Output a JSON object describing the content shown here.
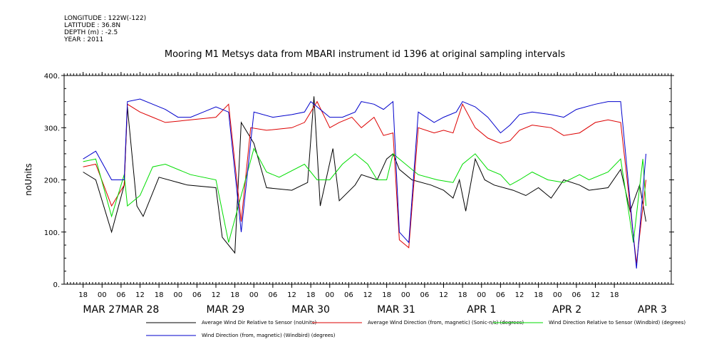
{
  "header": {
    "longitude": "LONGITUDE : 122W(-122)",
    "latitude": "LATITUDE : 36.8N",
    "depth": "DEPTH (m) : -2.5",
    "year": "YEAR : 2011"
  },
  "chart_data": {
    "type": "line",
    "title": "Mooring M1 Metsys data from MBARI instrument id 1396 at original sampling intervals",
    "ylabel": "noUnits",
    "ylim": [
      0,
      400
    ],
    "yticks": [
      0,
      100,
      200,
      300,
      400
    ],
    "ytick_labels": [
      "0.",
      "100.",
      "200.",
      "300.",
      "400."
    ],
    "xlim_hours": [
      -6,
      186
    ],
    "x_hour_ticks": [
      {
        "h": 0,
        "label": "18"
      },
      {
        "h": 6,
        "label": "00"
      },
      {
        "h": 12,
        "label": "06"
      },
      {
        "h": 18,
        "label": "12"
      },
      {
        "h": 24,
        "label": "18"
      },
      {
        "h": 30,
        "label": "00"
      },
      {
        "h": 36,
        "label": "06"
      },
      {
        "h": 42,
        "label": "12"
      },
      {
        "h": 48,
        "label": "18"
      },
      {
        "h": 54,
        "label": "00"
      },
      {
        "h": 60,
        "label": "06"
      },
      {
        "h": 66,
        "label": "12"
      },
      {
        "h": 72,
        "label": "18"
      },
      {
        "h": 78,
        "label": "00"
      },
      {
        "h": 84,
        "label": "06"
      },
      {
        "h": 90,
        "label": "12"
      },
      {
        "h": 96,
        "label": "18"
      },
      {
        "h": 102,
        "label": "00"
      },
      {
        "h": 108,
        "label": "06"
      },
      {
        "h": 114,
        "label": "12"
      },
      {
        "h": 120,
        "label": "18"
      },
      {
        "h": 126,
        "label": "00"
      },
      {
        "h": 132,
        "label": "06"
      },
      {
        "h": 138,
        "label": "12"
      },
      {
        "h": 144,
        "label": "18"
      },
      {
        "h": 150,
        "label": "00"
      },
      {
        "h": 156,
        "label": "06"
      },
      {
        "h": 162,
        "label": "12"
      },
      {
        "h": 168,
        "label": "18"
      }
    ],
    "x_date_labels": [
      {
        "h": 6,
        "label": "MAR 27"
      },
      {
        "h": 18,
        "label": "MAR 28"
      },
      {
        "h": 45,
        "label": "MAR 29"
      },
      {
        "h": 72,
        "label": "MAR 30"
      },
      {
        "h": 99,
        "label": "MAR 31"
      },
      {
        "h": 126,
        "label": "APR  1"
      },
      {
        "h": 153,
        "label": "APR  2"
      },
      {
        "h": 180,
        "label": "APR  3"
      }
    ],
    "series": [
      {
        "name": "Average Wind Dir Relative to Sensor (noUnits)",
        "color": "#000000",
        "points": [
          [
            0,
            215
          ],
          [
            4,
            200
          ],
          [
            9,
            100
          ],
          [
            13,
            190
          ],
          [
            14,
            340
          ],
          [
            17,
            150
          ],
          [
            19,
            130
          ],
          [
            24,
            205
          ],
          [
            33,
            190
          ],
          [
            42,
            185
          ],
          [
            44,
            90
          ],
          [
            48,
            60
          ],
          [
            50,
            310
          ],
          [
            54,
            270
          ],
          [
            58,
            185
          ],
          [
            66,
            180
          ],
          [
            71,
            195
          ],
          [
            73,
            360
          ],
          [
            75,
            150
          ],
          [
            79,
            260
          ],
          [
            81,
            160
          ],
          [
            86,
            190
          ],
          [
            88,
            210
          ],
          [
            93,
            200
          ],
          [
            96,
            240
          ],
          [
            98,
            250
          ],
          [
            100,
            220
          ],
          [
            104,
            200
          ],
          [
            110,
            190
          ],
          [
            114,
            180
          ],
          [
            117,
            165
          ],
          [
            119,
            200
          ],
          [
            121,
            140
          ],
          [
            124,
            240
          ],
          [
            127,
            200
          ],
          [
            130,
            190
          ],
          [
            136,
            180
          ],
          [
            140,
            170
          ],
          [
            144,
            185
          ],
          [
            148,
            165
          ],
          [
            152,
            200
          ],
          [
            157,
            190
          ],
          [
            160,
            180
          ],
          [
            166,
            185
          ],
          [
            170,
            220
          ],
          [
            173,
            140
          ],
          [
            176,
            190
          ],
          [
            178,
            120
          ]
        ]
      },
      {
        "name": "Average Wind Direction (from, magnetic) (Sonic-n/s) (degrees)",
        "color": "#dd0000",
        "points": [
          [
            0,
            225
          ],
          [
            4,
            230
          ],
          [
            9,
            150
          ],
          [
            13,
            190
          ],
          [
            14,
            345
          ],
          [
            18,
            330
          ],
          [
            22,
            320
          ],
          [
            26,
            310
          ],
          [
            34,
            315
          ],
          [
            42,
            320
          ],
          [
            46,
            345
          ],
          [
            50,
            120
          ],
          [
            53,
            300
          ],
          [
            58,
            295
          ],
          [
            66,
            300
          ],
          [
            70,
            310
          ],
          [
            74,
            350
          ],
          [
            78,
            300
          ],
          [
            81,
            310
          ],
          [
            85,
            320
          ],
          [
            88,
            300
          ],
          [
            92,
            320
          ],
          [
            95,
            285
          ],
          [
            98,
            290
          ],
          [
            100,
            85
          ],
          [
            103,
            70
          ],
          [
            106,
            300
          ],
          [
            111,
            290
          ],
          [
            114,
            295
          ],
          [
            117,
            290
          ],
          [
            120,
            345
          ],
          [
            124,
            300
          ],
          [
            128,
            280
          ],
          [
            132,
            270
          ],
          [
            135,
            275
          ],
          [
            138,
            295
          ],
          [
            142,
            305
          ],
          [
            148,
            300
          ],
          [
            152,
            285
          ],
          [
            157,
            290
          ],
          [
            162,
            310
          ],
          [
            166,
            315
          ],
          [
            170,
            310
          ],
          [
            175,
            40
          ],
          [
            178,
            200
          ]
        ]
      },
      {
        "name": "Wind Direction Relative to Sensor (Windbird) (degrees)",
        "color": "#00dd00",
        "points": [
          [
            0,
            235
          ],
          [
            4,
            240
          ],
          [
            9,
            130
          ],
          [
            13,
            210
          ],
          [
            14,
            150
          ],
          [
            18,
            170
          ],
          [
            22,
            225
          ],
          [
            26,
            230
          ],
          [
            34,
            210
          ],
          [
            42,
            200
          ],
          [
            46,
            80
          ],
          [
            50,
            170
          ],
          [
            54,
            260
          ],
          [
            58,
            215
          ],
          [
            62,
            205
          ],
          [
            70,
            230
          ],
          [
            74,
            200
          ],
          [
            78,
            200
          ],
          [
            82,
            230
          ],
          [
            86,
            250
          ],
          [
            90,
            230
          ],
          [
            93,
            200
          ],
          [
            96,
            200
          ],
          [
            98,
            250
          ],
          [
            100,
            240
          ],
          [
            106,
            210
          ],
          [
            112,
            200
          ],
          [
            117,
            195
          ],
          [
            120,
            230
          ],
          [
            124,
            250
          ],
          [
            128,
            220
          ],
          [
            132,
            210
          ],
          [
            135,
            190
          ],
          [
            138,
            200
          ],
          [
            142,
            215
          ],
          [
            147,
            200
          ],
          [
            152,
            195
          ],
          [
            157,
            210
          ],
          [
            160,
            200
          ],
          [
            166,
            215
          ],
          [
            170,
            240
          ],
          [
            174,
            80
          ],
          [
            177,
            240
          ],
          [
            178,
            150
          ]
        ]
      },
      {
        "name": "Wind Direction (from, magnetic) (Windbird) (degrees)",
        "color": "#0000cc",
        "points": [
          [
            0,
            240
          ],
          [
            4,
            255
          ],
          [
            9,
            200
          ],
          [
            13,
            200
          ],
          [
            14,
            350
          ],
          [
            18,
            355
          ],
          [
            22,
            345
          ],
          [
            26,
            335
          ],
          [
            30,
            320
          ],
          [
            34,
            320
          ],
          [
            38,
            330
          ],
          [
            42,
            340
          ],
          [
            46,
            330
          ],
          [
            50,
            100
          ],
          [
            54,
            330
          ],
          [
            60,
            320
          ],
          [
            66,
            325
          ],
          [
            70,
            330
          ],
          [
            72,
            350
          ],
          [
            78,
            320
          ],
          [
            82,
            320
          ],
          [
            86,
            330
          ],
          [
            88,
            350
          ],
          [
            92,
            345
          ],
          [
            95,
            335
          ],
          [
            98,
            350
          ],
          [
            100,
            100
          ],
          [
            103,
            80
          ],
          [
            106,
            330
          ],
          [
            111,
            310
          ],
          [
            114,
            320
          ],
          [
            118,
            330
          ],
          [
            120,
            350
          ],
          [
            124,
            340
          ],
          [
            128,
            320
          ],
          [
            132,
            290
          ],
          [
            135,
            305
          ],
          [
            138,
            325
          ],
          [
            142,
            330
          ],
          [
            148,
            325
          ],
          [
            152,
            320
          ],
          [
            156,
            335
          ],
          [
            162,
            345
          ],
          [
            166,
            350
          ],
          [
            170,
            350
          ],
          [
            175,
            30
          ],
          [
            178,
            250
          ]
        ]
      }
    ],
    "legend": [
      {
        "text": "Average Wind Dir Relative to Sensor (noUnits)",
        "color": "#000000",
        "row": 1,
        "col": 1
      },
      {
        "text": "Average Wind Direction (from, magnetic) (Sonic-n/s) (degrees)",
        "color": "#dd0000",
        "row": 1,
        "col": 2
      },
      {
        "text": "Wind Direction Relative to Sensor (Windbird) (degrees)",
        "color": "#00dd00",
        "row": 1,
        "col": 3
      },
      {
        "text": "Wind Direction (from, magnetic) (Windbird) (degrees)",
        "color": "#0000cc",
        "row": 2,
        "col": 1
      }
    ]
  }
}
